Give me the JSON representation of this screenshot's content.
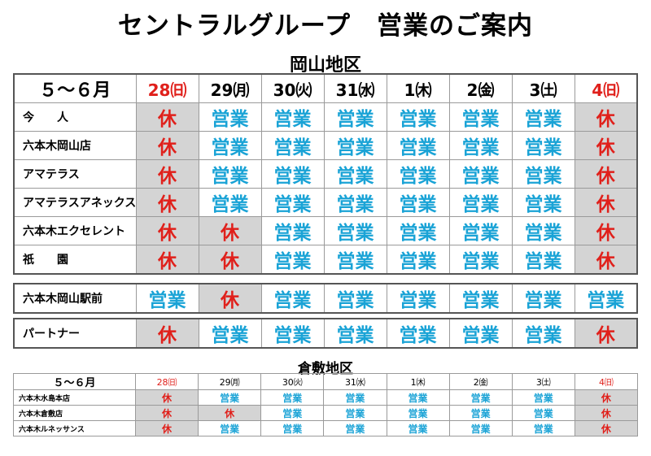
{
  "title": "セントラルグループ　営業のご案内",
  "period_label": "５～６月",
  "days": [
    {
      "label": "28㈰",
      "sunday": true
    },
    {
      "label": "29㈪",
      "sunday": false
    },
    {
      "label": "30㈫",
      "sunday": false
    },
    {
      "label": "31㈬",
      "sunday": false
    },
    {
      "label": "1㈭",
      "sunday": false
    },
    {
      "label": "2㈮",
      "sunday": false
    },
    {
      "label": "3㈯",
      "sunday": false
    },
    {
      "label": "4㈰",
      "sunday": true
    }
  ],
  "status_labels": {
    "closed": "休",
    "open": "営業"
  },
  "okayama": {
    "region": "岡山地区",
    "groups": [
      [
        {
          "name": "今　　人",
          "status": [
            "休",
            "営業",
            "営業",
            "営業",
            "営業",
            "営業",
            "営業",
            "休"
          ],
          "shaded": [
            true,
            false,
            false,
            false,
            false,
            false,
            false,
            true
          ]
        },
        {
          "name": "六本木岡山店",
          "status": [
            "休",
            "営業",
            "営業",
            "営業",
            "営業",
            "営業",
            "営業",
            "休"
          ],
          "shaded": [
            true,
            false,
            false,
            false,
            false,
            false,
            false,
            true
          ]
        },
        {
          "name": "アマテラス",
          "status": [
            "休",
            "営業",
            "営業",
            "営業",
            "営業",
            "営業",
            "営業",
            "休"
          ],
          "shaded": [
            true,
            false,
            false,
            false,
            false,
            false,
            false,
            true
          ]
        },
        {
          "name": "アマテラスアネックス",
          "status": [
            "休",
            "営業",
            "営業",
            "営業",
            "営業",
            "営業",
            "営業",
            "休"
          ],
          "shaded": [
            true,
            false,
            false,
            false,
            false,
            false,
            false,
            true
          ]
        },
        {
          "name": "六本木エクセレント",
          "status": [
            "休",
            "休",
            "営業",
            "営業",
            "営業",
            "営業",
            "営業",
            "休"
          ],
          "shaded": [
            true,
            true,
            false,
            false,
            false,
            false,
            false,
            true
          ]
        },
        {
          "name": "祇　　園",
          "status": [
            "休",
            "休",
            "営業",
            "営業",
            "営業",
            "営業",
            "営業",
            "休"
          ],
          "shaded": [
            true,
            true,
            false,
            false,
            false,
            false,
            false,
            true
          ]
        }
      ],
      [
        {
          "name": "六本木岡山駅前",
          "status": [
            "営業",
            "休",
            "営業",
            "営業",
            "営業",
            "営業",
            "営業",
            "営業"
          ],
          "shaded": [
            false,
            true,
            false,
            false,
            false,
            false,
            false,
            false
          ]
        }
      ],
      [
        {
          "name": "パートナー",
          "status": [
            "休",
            "営業",
            "営業",
            "営業",
            "営業",
            "営業",
            "営業",
            "休"
          ],
          "shaded": [
            true,
            false,
            false,
            false,
            false,
            false,
            false,
            true
          ]
        }
      ]
    ]
  },
  "kurashiki": {
    "region": "倉敷地区",
    "rows": [
      {
        "name": "六本木水島本店",
        "status": [
          "休",
          "営業",
          "営業",
          "営業",
          "営業",
          "営業",
          "営業",
          "休"
        ],
        "shaded": [
          true,
          false,
          false,
          false,
          false,
          false,
          false,
          true
        ]
      },
      {
        "name": "六本木倉敷店",
        "status": [
          "休",
          "休",
          "営業",
          "営業",
          "営業",
          "営業",
          "営業",
          "休"
        ],
        "shaded": [
          true,
          true,
          false,
          false,
          false,
          false,
          false,
          true
        ]
      },
      {
        "name": "六本木ルネッサンス",
        "status": [
          "休",
          "営業",
          "営業",
          "営業",
          "営業",
          "営業",
          "営業",
          "休"
        ],
        "shaded": [
          true,
          false,
          false,
          false,
          false,
          false,
          false,
          true
        ]
      }
    ]
  }
}
